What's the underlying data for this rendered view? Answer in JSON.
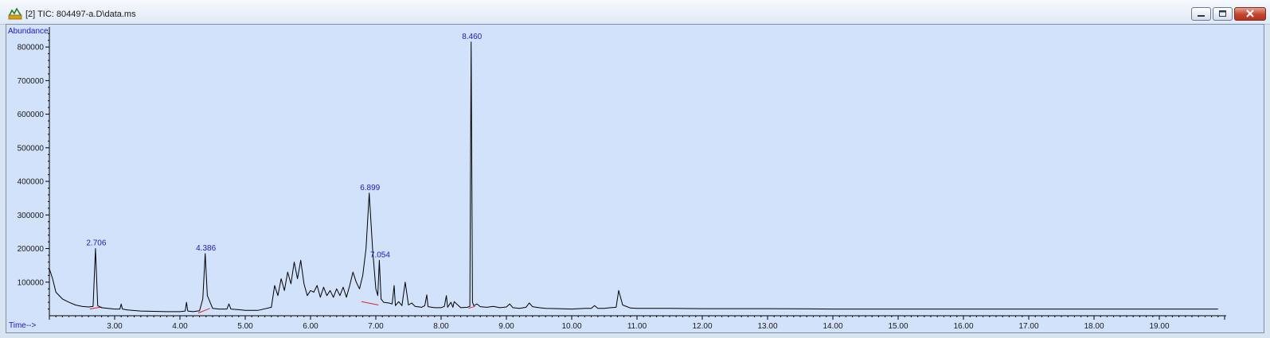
{
  "window": {
    "title": "[2] TIC: 804497-a.D\\data.ms",
    "icon": "chromatogram-app-icon",
    "controls": [
      "minimize-icon",
      "maximize-icon",
      "close-icon"
    ]
  },
  "chart_data": {
    "type": "line",
    "title": "",
    "ylabel": "Abundance",
    "xlabel": "Time-->",
    "xlim": [
      2.0,
      20.0
    ],
    "ylim": [
      0,
      850000
    ],
    "grid": false,
    "x_ticks": [
      3.0,
      4.0,
      5.0,
      6.0,
      7.0,
      8.0,
      9.0,
      10.0,
      11.0,
      12.0,
      13.0,
      14.0,
      15.0,
      16.0,
      17.0,
      18.0,
      19.0
    ],
    "x_tick_labels": [
      "3.00",
      "4.00",
      "5.00",
      "6.00",
      "7.00",
      "8.00",
      "9.00",
      "10.00",
      "11.00",
      "12.00",
      "13.00",
      "14.00",
      "15.00",
      "16.00",
      "17.00",
      "18.00",
      "19.00"
    ],
    "y_ticks": [
      100000,
      200000,
      300000,
      400000,
      500000,
      600000,
      700000,
      800000
    ],
    "y_tick_labels": [
      "100000",
      "200000",
      "300000",
      "400000",
      "500000",
      "600000",
      "700000",
      "800000"
    ],
    "colors": {
      "trace": "#000000",
      "baseline": "#e02020",
      "labels": "#1a1ab8",
      "plot_bg": "#d2e2fb"
    },
    "series": [
      {
        "x": [
          2.0,
          2.05,
          2.1,
          2.2,
          2.3,
          2.4,
          2.5,
          2.6,
          2.67,
          2.706,
          2.74,
          2.8,
          2.9,
          3.0,
          3.08,
          3.1,
          3.12,
          3.2,
          3.4,
          3.6,
          3.8,
          4.0,
          4.08,
          4.1,
          4.12,
          4.2,
          4.3,
          4.35,
          4.386,
          4.42,
          4.5,
          4.6,
          4.72,
          4.75,
          4.78,
          4.9,
          5.0,
          5.2,
          5.4,
          5.45,
          5.5,
          5.55,
          5.6,
          5.65,
          5.7,
          5.75,
          5.8,
          5.85,
          5.9,
          5.95,
          6.0,
          6.05,
          6.1,
          6.15,
          6.2,
          6.25,
          6.3,
          6.35,
          6.4,
          6.45,
          6.5,
          6.55,
          6.6,
          6.65,
          6.7,
          6.75,
          6.8,
          6.85,
          6.899,
          6.95,
          7.0,
          7.03,
          7.054,
          7.08,
          7.12,
          7.2,
          7.25,
          7.28,
          7.3,
          7.35,
          7.4,
          7.45,
          7.5,
          7.55,
          7.6,
          7.7,
          7.75,
          7.78,
          7.8,
          7.9,
          8.0,
          8.05,
          8.08,
          8.1,
          8.15,
          8.18,
          8.2,
          8.3,
          8.4,
          8.44,
          8.46,
          8.48,
          8.5,
          8.55,
          8.6,
          8.7,
          8.8,
          8.9,
          9.0,
          9.05,
          9.1,
          9.2,
          9.3,
          9.35,
          9.4,
          9.5,
          9.6,
          9.8,
          10.0,
          10.2,
          10.3,
          10.35,
          10.4,
          10.5,
          10.6,
          10.68,
          10.72,
          10.78,
          10.9,
          11.0,
          11.5,
          12.0,
          13.0,
          14.0,
          15.0,
          16.0,
          17.0,
          18.0,
          19.0,
          19.9
        ],
        "y": [
          140000,
          110000,
          70000,
          50000,
          40000,
          32000,
          28000,
          26000,
          28000,
          200000,
          30000,
          24000,
          22000,
          20000,
          20000,
          35000,
          20000,
          17000,
          14000,
          13000,
          12000,
          12000,
          14000,
          40000,
          14000,
          12000,
          15000,
          50000,
          185000,
          60000,
          22000,
          20000,
          20000,
          35000,
          20000,
          18000,
          16000,
          16000,
          25000,
          90000,
          60000,
          110000,
          75000,
          130000,
          95000,
          160000,
          110000,
          165000,
          95000,
          60000,
          75000,
          70000,
          90000,
          55000,
          85000,
          60000,
          75000,
          55000,
          80000,
          60000,
          85000,
          55000,
          90000,
          130000,
          100000,
          80000,
          120000,
          200000,
          365000,
          200000,
          80000,
          60000,
          165000,
          50000,
          40000,
          38000,
          35000,
          90000,
          30000,
          42000,
          30000,
          100000,
          32000,
          38000,
          28000,
          25000,
          30000,
          62000,
          27000,
          24000,
          24000,
          28000,
          60000,
          25000,
          40000,
          25000,
          42000,
          24000,
          25000,
          28000,
          815000,
          40000,
          30000,
          35000,
          27000,
          25000,
          28000,
          24000,
          26000,
          35000,
          24000,
          22000,
          25000,
          38000,
          27000,
          24000,
          22000,
          21000,
          20000,
          22000,
          22000,
          30000,
          22000,
          22000,
          24000,
          25000,
          75000,
          32000,
          23000,
          22000,
          22000,
          21000,
          21000,
          20000,
          20000,
          20000,
          20000,
          20000,
          20000,
          20000
        ]
      }
    ],
    "peak_labels": [
      {
        "x": 2.706,
        "y": 200000,
        "text": "2.706"
      },
      {
        "x": 4.386,
        "y": 185000,
        "text": "4.386"
      },
      {
        "x": 6.899,
        "y": 365000,
        "text": "6.899"
      },
      {
        "x": 7.054,
        "y": 165000,
        "text": "7.054"
      },
      {
        "x": 8.46,
        "y": 815000,
        "text": "8.460"
      }
    ],
    "baselines": [
      {
        "x": [
          2.62,
          2.8
        ],
        "y": [
          20000,
          26000
        ]
      },
      {
        "x": [
          4.28,
          4.46
        ],
        "y": [
          8000,
          22000
        ]
      },
      {
        "x": [
          6.78,
          7.04
        ],
        "y": [
          42000,
          32000
        ]
      },
      {
        "x": [
          8.42,
          8.52
        ],
        "y": [
          22000,
          28000
        ]
      }
    ]
  }
}
